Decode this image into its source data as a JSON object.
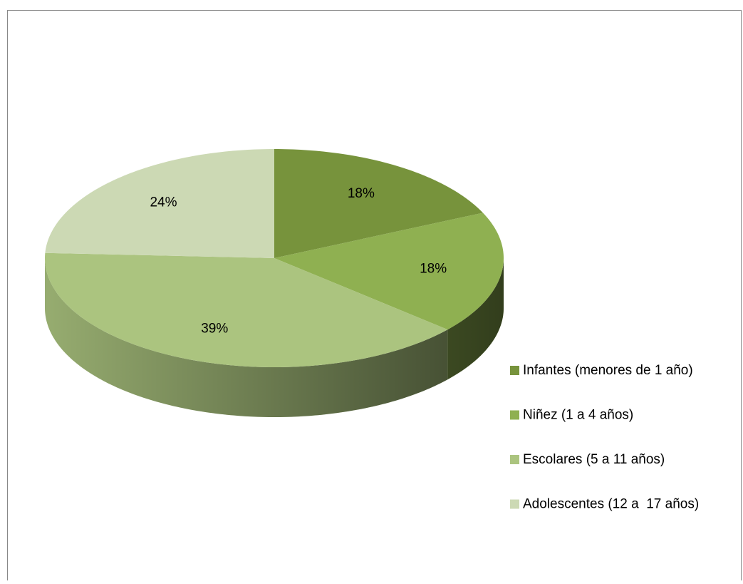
{
  "chart_data": {
    "type": "pie",
    "categories": [
      "Infantes (menores de 1 año)",
      "Niñez (1 a 4 años)",
      "Escolares (5 a 11 años)",
      "Adolescentes (12 a  17 años)"
    ],
    "values": [
      18,
      18,
      39,
      24
    ],
    "value_labels": [
      "18%",
      "18%",
      "39%",
      "24%"
    ],
    "colors": [
      "#77933c",
      "#8fb051",
      "#abc47f",
      "#ccd9b4"
    ],
    "legend": "right"
  }
}
